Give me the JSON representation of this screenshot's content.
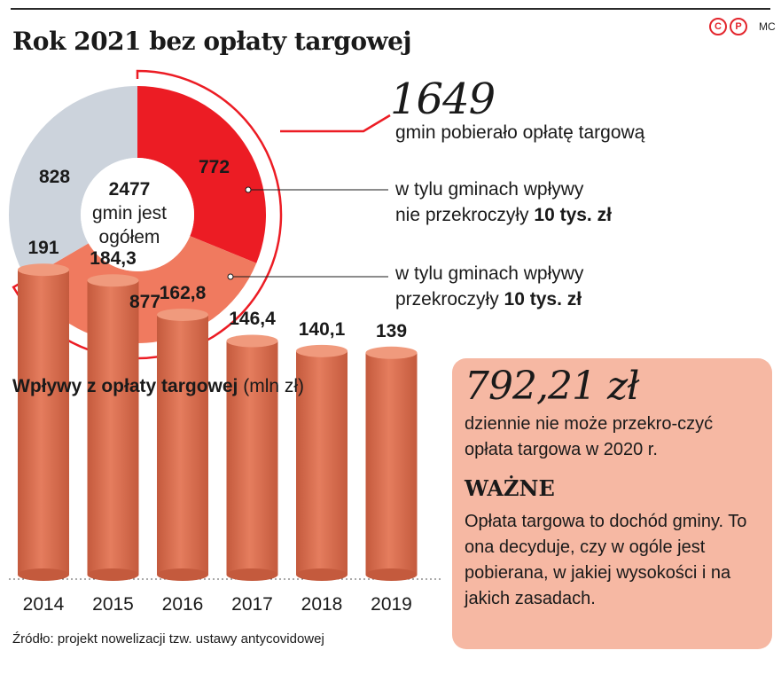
{
  "header": {
    "title": "Rok 2021 bez opłaty targowej",
    "author": "MC"
  },
  "pie": {
    "total_value": "2477",
    "total_caption_line1": "gmin jest",
    "total_caption_line2": "ogółem",
    "collected_value": "1649",
    "collected_caption": "gmin pobierało opłatę targową",
    "legend": {
      "under": {
        "line1": "w tylu gminach wpływy",
        "line2_prefix": "nie przekroczyły ",
        "line2_bold": "10 tys. zł"
      },
      "over": {
        "line1": "w tylu gminach wpływy",
        "line2_prefix": "przekroczyły ",
        "line2_bold": "10 tys. zł"
      }
    }
  },
  "bars": {
    "title_bold": "Wpływy z opłaty targowej",
    "title_unit": "(mln zł)",
    "source": "Źródło: projekt nowelizacji tzw. ustawy antycovidowej"
  },
  "card": {
    "amount": "792,21 zł",
    "amount_desc": "dziennie nie może przekro-czyć opłata targowa w 2020 r.",
    "heading": "WAŻNE",
    "body": "Opłata targowa to dochód gminy. To ona decyduje, czy w ogóle jest pobierana, w jakiej wysokości i na jakich zasadach."
  },
  "colors": {
    "under_10k": "#ec1c24",
    "over_10k": "#f07a5f",
    "not_collecting": "#ccd3dc",
    "bar": "#dc6a4c",
    "card_bg": "#f6b8a3",
    "brand_red": "#e3262d"
  },
  "chart_data": [
    {
      "type": "pie",
      "title": "Rok 2021 bez opłaty targowej",
      "slices": [
        {
          "label": "w tylu gminach wpływy nie przekroczyły 10 tys. zł",
          "value": 772
        },
        {
          "label": "w tylu gminach wpływy przekroczyły 10 tys. zł",
          "value": 877
        },
        {
          "label": "",
          "value": 828
        }
      ],
      "total": 2477
    },
    {
      "type": "bar",
      "title": "Wpływy z opłaty targowej",
      "ylabel": "(mln zł)",
      "categories": [
        "2014",
        "2015",
        "2016",
        "2017",
        "2018",
        "2019"
      ],
      "values": [
        191,
        184.3,
        162.8,
        146.4,
        140.1,
        139
      ],
      "labels": [
        "191",
        "184,3",
        "162,8",
        "146,4",
        "140,1",
        "139"
      ]
    }
  ]
}
